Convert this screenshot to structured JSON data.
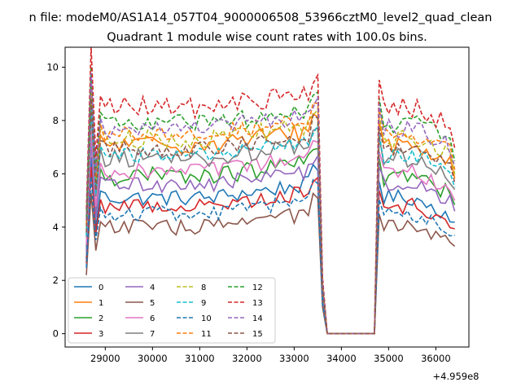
{
  "figure": {
    "suptitle": "n file: modeM0/AS1A14_057T04_9000006508_53966cztM0_level2_quad_clean",
    "background": "#ffffff"
  },
  "chart_data": {
    "type": "line",
    "title": "Quadrant 1 module wise count rates with 100.0s bins.",
    "xlabel": "",
    "ylabel": "",
    "x_offset_label": "+4.959e8",
    "xlim": [
      28150,
      36700
    ],
    "ylim": [
      -0.5,
      10.75
    ],
    "xticks": [
      29000,
      30000,
      31000,
      32000,
      33000,
      34000,
      35000,
      36000
    ],
    "yticks": [
      0,
      2,
      4,
      6,
      8,
      10
    ],
    "grid": false,
    "legend_position": "lower-left",
    "legend_columns": 4,
    "x_start": 28600,
    "x_step": 100,
    "gap": {
      "from": 33700,
      "to": 34700,
      "value": 0
    },
    "series": [
      {
        "name": "0",
        "color": "#1f77b4",
        "dash": "solid",
        "mean": 5.1,
        "amp": 0.3
      },
      {
        "name": "1",
        "color": "#ff7f0e",
        "dash": "solid",
        "mean": 7.1,
        "amp": 0.35
      },
      {
        "name": "2",
        "color": "#2ca02c",
        "dash": "solid",
        "mean": 5.9,
        "amp": 0.35
      },
      {
        "name": "3",
        "color": "#d62728",
        "dash": "solid",
        "mean": 4.8,
        "amp": 0.3
      },
      {
        "name": "4",
        "color": "#9467bd",
        "dash": "solid",
        "mean": 5.6,
        "amp": 0.3
      },
      {
        "name": "5",
        "color": "#8c564b",
        "dash": "solid",
        "mean": 4.0,
        "amp": 0.3
      },
      {
        "name": "6",
        "color": "#e377c2",
        "dash": "solid",
        "mean": 6.1,
        "amp": 0.3
      },
      {
        "name": "7",
        "color": "#7f7f7f",
        "dash": "solid",
        "mean": 6.6,
        "amp": 0.35
      },
      {
        "name": "8",
        "color": "#bcbd22",
        "dash": "dashed",
        "mean": 7.3,
        "amp": 0.35
      },
      {
        "name": "9",
        "color": "#17becf",
        "dash": "dashed",
        "mean": 6.7,
        "amp": 0.3
      },
      {
        "name": "10",
        "color": "#1f77b4",
        "dash": "dashed",
        "mean": 4.5,
        "amp": 0.3
      },
      {
        "name": "11",
        "color": "#ff7f0e",
        "dash": "dashed",
        "mean": 7.5,
        "amp": 0.3
      },
      {
        "name": "12",
        "color": "#2ca02c",
        "dash": "dashed",
        "mean": 7.9,
        "amp": 0.35
      },
      {
        "name": "13",
        "color": "#d62728",
        "dash": "dashed",
        "mean": 8.5,
        "amp": 0.4
      },
      {
        "name": "14",
        "color": "#9467bd",
        "dash": "dashed",
        "mean": 7.7,
        "amp": 0.35
      },
      {
        "name": "15",
        "color": "#8c564b",
        "dash": "dashed",
        "mean": 6.9,
        "amp": 0.3
      }
    ]
  }
}
